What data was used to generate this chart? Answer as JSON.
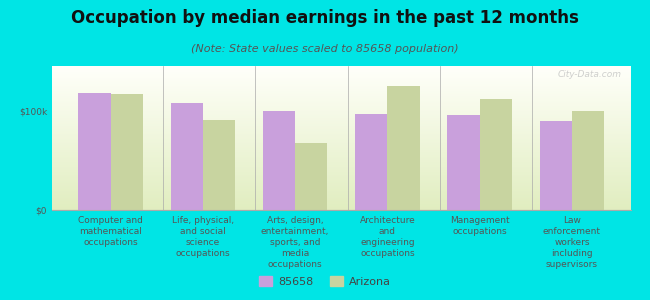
{
  "title": "Occupation by median earnings in the past 12 months",
  "subtitle": "(Note: State values scaled to 85658 population)",
  "categories": [
    "Computer and\nmathematical\noccupations",
    "Life, physical,\nand social\nscience\noccupations",
    "Arts, design,\nentertainment,\nsports, and\nmedia\noccupations",
    "Architecture\nand\nengineering\noccupations",
    "Management\noccupations",
    "Law\nenforcement\nworkers\nincluding\nsupervisors"
  ],
  "values_85658": [
    118000,
    108000,
    100000,
    97000,
    96000,
    90000
  ],
  "values_arizona": [
    117000,
    91000,
    67000,
    125000,
    112000,
    100000
  ],
  "color_85658": "#c9a0dc",
  "color_arizona": "#c8d4a0",
  "background_outer": "#00e5e5",
  "ylabel_ticks": [
    "$0",
    "$100k"
  ],
  "ytick_values": [
    0,
    100000
  ],
  "ylim": [
    0,
    145000
  ],
  "legend_label_1": "85658",
  "legend_label_2": "Arizona",
  "bar_width": 0.35,
  "title_fontsize": 12,
  "subtitle_fontsize": 8,
  "tick_fontsize": 6.5,
  "legend_fontsize": 8,
  "watermark": "City-Data.com"
}
